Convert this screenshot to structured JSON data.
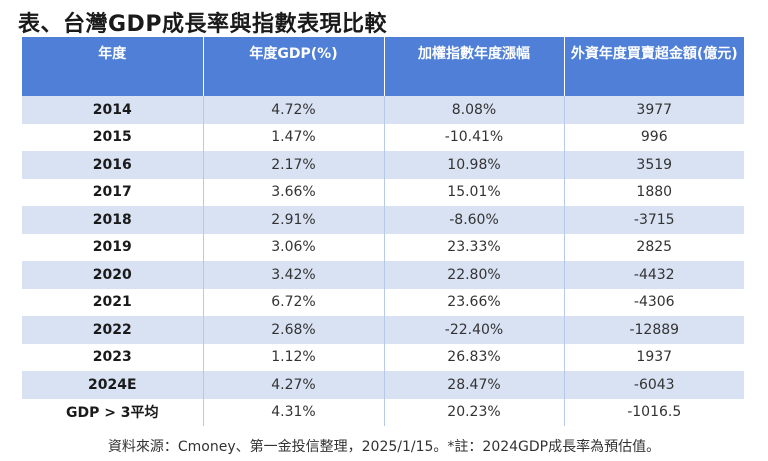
{
  "title": "表、台灣GDP成長率與指數表現比較",
  "table": {
    "headers": [
      "年度",
      "年度GDP(%)",
      "加權指數年度漲幅",
      "外資年度買賣超金額(億元)"
    ],
    "rows": [
      {
        "year": "2014",
        "gdp": "4.72%",
        "index": "8.08%",
        "foreign": "3977"
      },
      {
        "year": "2015",
        "gdp": "1.47%",
        "index": "-10.41%",
        "foreign": "996"
      },
      {
        "year": "2016",
        "gdp": "2.17%",
        "index": "10.98%",
        "foreign": "3519"
      },
      {
        "year": "2017",
        "gdp": "3.66%",
        "index": "15.01%",
        "foreign": "1880"
      },
      {
        "year": "2018",
        "gdp": "2.91%",
        "index": "-8.60%",
        "foreign": "-3715"
      },
      {
        "year": "2019",
        "gdp": "3.06%",
        "index": "23.33%",
        "foreign": "2825"
      },
      {
        "year": "2020",
        "gdp": "3.42%",
        "index": "22.80%",
        "foreign": "-4432"
      },
      {
        "year": "2021",
        "gdp": "6.72%",
        "index": "23.66%",
        "foreign": "-4306"
      },
      {
        "year": "2022",
        "gdp": "2.68%",
        "index": "-22.40%",
        "foreign": "-12889"
      },
      {
        "year": "2023",
        "gdp": "1.12%",
        "index": "26.83%",
        "foreign": "1937"
      },
      {
        "year": "2024E",
        "gdp": "4.27%",
        "index": "28.47%",
        "foreign": "-6043"
      },
      {
        "year": "GDP > 3平均",
        "gdp": "4.31%",
        "index": "20.23%",
        "foreign": "-1016.5"
      }
    ]
  },
  "footnote": "資料來源：Cmoney、第一金投信整理，2025/1/15。*註：2024GDP成長率為預估值。",
  "colors": {
    "header_bg": "#4f7fd6",
    "stripe_bg": "#d9e2f3"
  }
}
